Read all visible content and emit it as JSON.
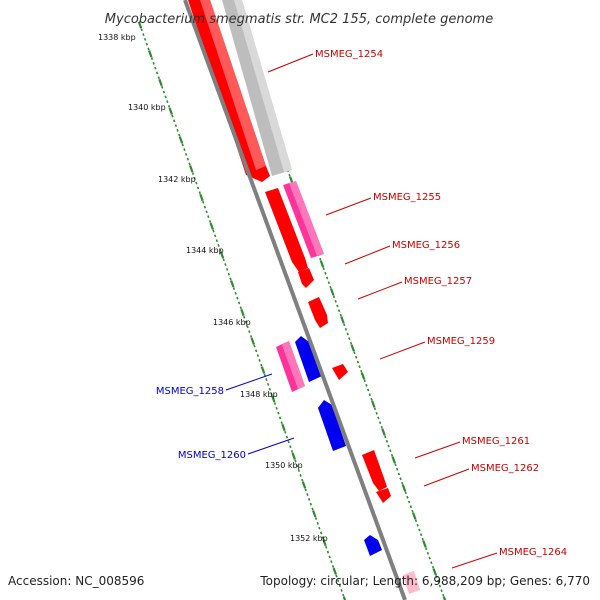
{
  "title": "Mycobacterium smegmatis str. MC2 155, complete genome",
  "footer": {
    "accession": "Accession: NC_008596",
    "topology": "Topology: circular; Length: 6,988,209 bp; Genes: 6,770"
  },
  "colors": {
    "background": "#ffffff",
    "backbone": "#7f7f7f",
    "tick": "#2e8b2e",
    "forward_cds": "#ff0000",
    "reverse_cds": "#0000ee",
    "pseudo_or_rna": "#ff3399",
    "gene_track": "#bdbdbd",
    "label_forward": "#cc0000",
    "label_reverse": "#0000cc"
  },
  "kbp_labels": [
    "1338 kbp",
    "1340 kbp",
    "1342 kbp",
    "1344 kbp",
    "1346 kbp",
    "1348 kbp",
    "1350 kbp",
    "1352 kbp"
  ],
  "genes": [
    {
      "label": "MSMEG_1254",
      "strand": "forward"
    },
    {
      "label": "MSMEG_1255",
      "strand": "forward"
    },
    {
      "label": "MSMEG_1256",
      "strand": "forward"
    },
    {
      "label": "MSMEG_1257",
      "strand": "forward"
    },
    {
      "label": "MSMEG_1259",
      "strand": "forward"
    },
    {
      "label": "MSMEG_1258",
      "strand": "reverse"
    },
    {
      "label": "MSMEG_1260",
      "strand": "reverse"
    },
    {
      "label": "MSMEG_1261",
      "strand": "forward"
    },
    {
      "label": "MSMEG_1262",
      "strand": "forward"
    },
    {
      "label": "MSMEG_1264",
      "strand": "forward"
    }
  ]
}
